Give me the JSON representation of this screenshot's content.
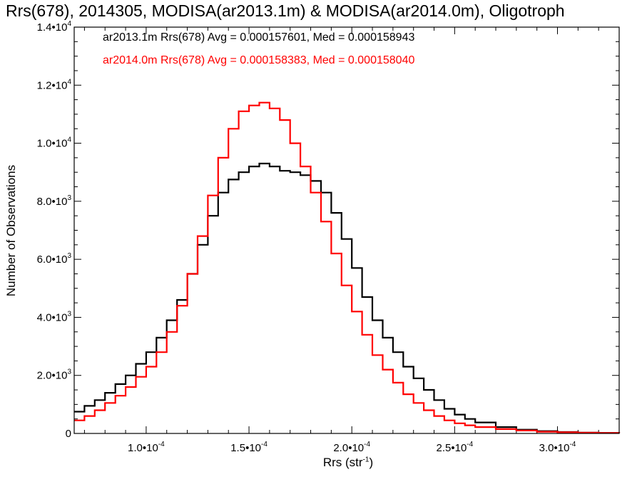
{
  "chart_data": {
    "type": "line",
    "title": "Rrs(678), 2014305, MODISA(ar2013.1m) & MODISA(ar2014.0m), Oligotroph",
    "xlabel_text": "Rrs (str",
    "xlabel_exp": "-1",
    "xlabel_close": ")",
    "ylabel": "Number of Observations",
    "xlim": [
      6.5e-05,
      0.00033
    ],
    "ylim": [
      0,
      14000
    ],
    "xticks": [
      {
        "value": 0.0001,
        "mantissa": "1.0",
        "exp": "-4"
      },
      {
        "value": 0.00015,
        "mantissa": "1.5",
        "exp": "-4"
      },
      {
        "value": 0.0002,
        "mantissa": "2.0",
        "exp": "-4"
      },
      {
        "value": 0.00025,
        "mantissa": "2.5",
        "exp": "-4"
      },
      {
        "value": 0.0003,
        "mantissa": "3.0",
        "exp": "-4"
      }
    ],
    "yticks": [
      {
        "value": 0,
        "mantissa": "0",
        "exp": ""
      },
      {
        "value": 2000,
        "mantissa": "2.0",
        "exp": "3"
      },
      {
        "value": 4000,
        "mantissa": "4.0",
        "exp": "3"
      },
      {
        "value": 6000,
        "mantissa": "6.0",
        "exp": "3"
      },
      {
        "value": 8000,
        "mantissa": "8.0",
        "exp": "3"
      },
      {
        "value": 10000,
        "mantissa": "1.0",
        "exp": "4"
      },
      {
        "value": 12000,
        "mantissa": "1.2",
        "exp": "4"
      },
      {
        "value": 14000,
        "mantissa": "1.4",
        "exp": "4"
      }
    ],
    "series": [
      {
        "name": "ar2013.1m Rrs(678) Avg = 0.000157601, Med = 0.000158943",
        "color": "#000000",
        "x": [
          6.5e-05,
          7e-05,
          7.5e-05,
          8e-05,
          8.5e-05,
          9e-05,
          9.5e-05,
          0.0001,
          0.000105,
          0.00011,
          0.000115,
          0.00012,
          0.000125,
          0.00013,
          0.000135,
          0.00014,
          0.000145,
          0.00015,
          0.000155,
          0.00016,
          0.000165,
          0.00017,
          0.000175,
          0.00018,
          0.000185,
          0.00019,
          0.000195,
          0.0002,
          0.000205,
          0.00021,
          0.000215,
          0.00022,
          0.000225,
          0.00023,
          0.000235,
          0.00024,
          0.000245,
          0.00025,
          0.000255,
          0.00026,
          0.00027,
          0.00028,
          0.00029,
          0.0003,
          0.00031,
          0.00032,
          0.00033
        ],
        "y": [
          750,
          950,
          1150,
          1400,
          1700,
          2000,
          2400,
          2800,
          3300,
          3900,
          4600,
          5500,
          6500,
          7500,
          8300,
          8750,
          9000,
          9200,
          9300,
          9200,
          9050,
          9000,
          8900,
          8700,
          8300,
          7600,
          6700,
          5700,
          4700,
          3900,
          3300,
          2800,
          2300,
          1900,
          1500,
          1150,
          850,
          650,
          500,
          380,
          220,
          130,
          80,
          50,
          30,
          20,
          15
        ]
      },
      {
        "name": "ar2014.0m Rrs(678) Avg = 0.000158383, Med = 0.000158040",
        "color": "#ff0000",
        "x": [
          6.5e-05,
          7e-05,
          7.5e-05,
          8e-05,
          8.5e-05,
          9e-05,
          9.5e-05,
          0.0001,
          0.000105,
          0.00011,
          0.000115,
          0.00012,
          0.000125,
          0.00013,
          0.000135,
          0.00014,
          0.000145,
          0.00015,
          0.000155,
          0.00016,
          0.000165,
          0.00017,
          0.000175,
          0.00018,
          0.000185,
          0.00019,
          0.000195,
          0.0002,
          0.000205,
          0.00021,
          0.000215,
          0.00022,
          0.000225,
          0.00023,
          0.000235,
          0.00024,
          0.000245,
          0.00025,
          0.000255,
          0.00026,
          0.00027,
          0.00028,
          0.00029,
          0.0003,
          0.00031,
          0.00032,
          0.00033
        ],
        "y": [
          450,
          600,
          800,
          1050,
          1300,
          1600,
          1950,
          2300,
          2800,
          3500,
          4400,
          5500,
          6800,
          8200,
          9500,
          10500,
          11100,
          11300,
          11400,
          11200,
          10800,
          10000,
          9200,
          8300,
          7300,
          6200,
          5100,
          4200,
          3400,
          2700,
          2200,
          1750,
          1350,
          1050,
          800,
          600,
          450,
          350,
          280,
          220,
          150,
          100,
          60,
          40,
          25,
          15,
          10
        ]
      }
    ],
    "legend": "top-left, inside plot",
    "grid": false
  }
}
